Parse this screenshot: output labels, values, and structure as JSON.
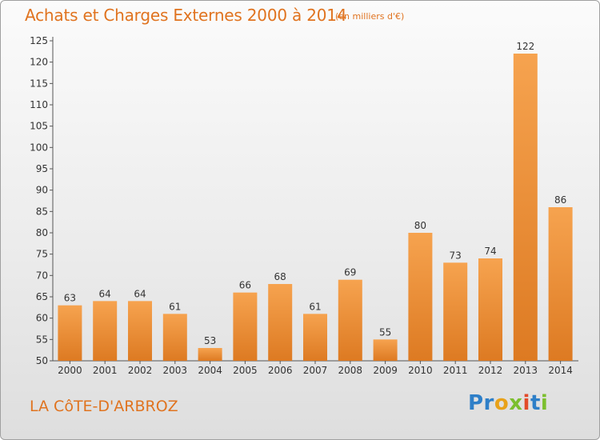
{
  "header": {
    "title": "Achats et Charges Externes 2000 à 2014",
    "subtitle": "(en milliers d'€)"
  },
  "footer": {
    "place": "LA CôTE-D'ARBROZ",
    "logo_text": "Proxiti"
  },
  "colors": {
    "accent": "#e0731f",
    "bar_light": "#f6a34f",
    "bar_dark": "#dd7a22",
    "axis": "#555555"
  },
  "chart_data": {
    "type": "bar",
    "title": "Achats et Charges Externes 2000 à 2014",
    "subtitle": "(en milliers d'€)",
    "xlabel": "",
    "ylabel": "",
    "categories": [
      "2000",
      "2001",
      "2002",
      "2003",
      "2004",
      "2005",
      "2006",
      "2007",
      "2008",
      "2009",
      "2010",
      "2011",
      "2012",
      "2013",
      "2014"
    ],
    "values": [
      63,
      64,
      64,
      61,
      53,
      66,
      68,
      61,
      69,
      55,
      80,
      73,
      74,
      122,
      86
    ],
    "ylim": [
      50,
      125
    ],
    "yticks": [
      50,
      55,
      60,
      65,
      70,
      75,
      80,
      85,
      90,
      95,
      100,
      105,
      110,
      115,
      120,
      125
    ],
    "grid": false,
    "data_labels": true
  }
}
